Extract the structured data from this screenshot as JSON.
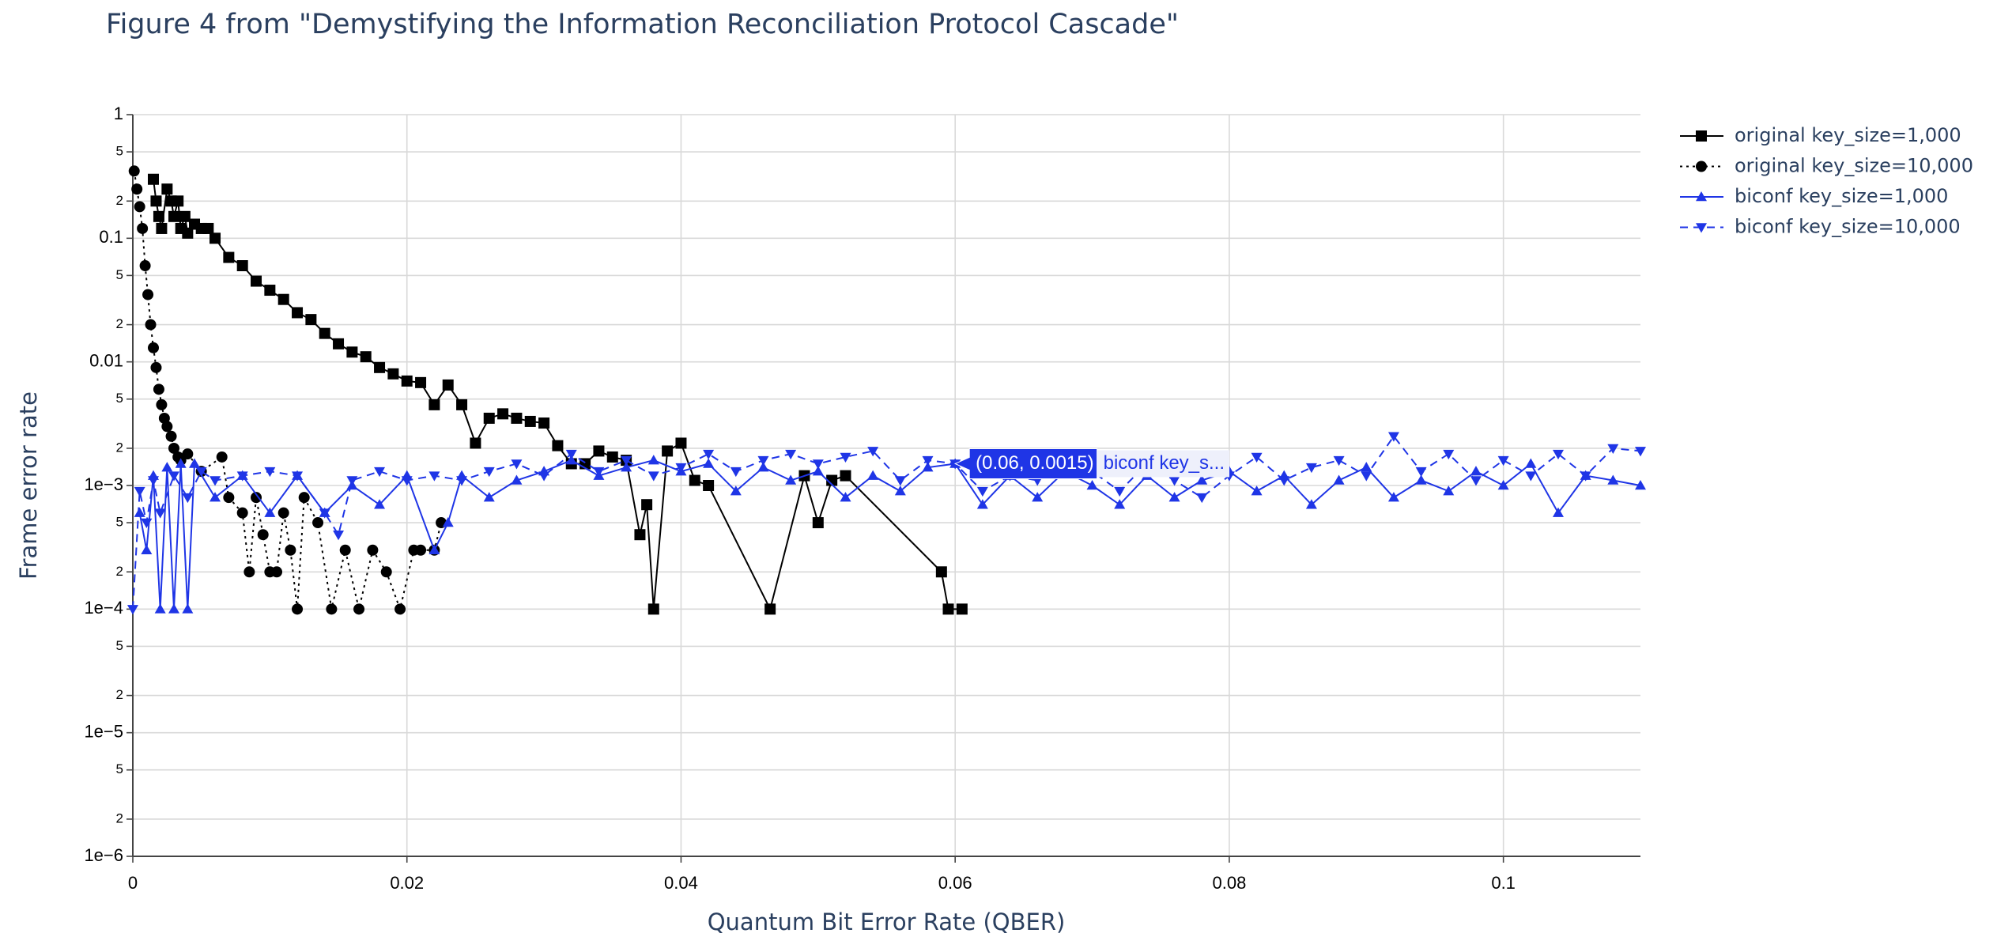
{
  "chart_data": {
    "type": "line",
    "title": "Figure 4 from \"Demystifying the Information Reconciliation Protocol Cascade\"",
    "x_label": "Quantum Bit Error Rate (QBER)",
    "y_label": "Frame error rate",
    "xlim": [
      0,
      0.11
    ],
    "xticks": [
      0,
      0.02,
      0.04,
      0.06,
      0.08,
      0.1
    ],
    "ylim": [
      1e-06,
      1
    ],
    "yscale": "log",
    "yticks": [
      1,
      {
        "value": 0.5,
        "label": "5"
      },
      {
        "value": 0.2,
        "label": "2"
      },
      0.1,
      {
        "value": 0.05,
        "label": "5"
      },
      {
        "value": 0.02,
        "label": "2"
      },
      0.01,
      {
        "value": 0.005,
        "label": "5"
      },
      {
        "value": 0.002,
        "label": "2"
      },
      {
        "value": 0.001,
        "label": "1e−3"
      },
      {
        "value": 0.0005,
        "label": "5"
      },
      {
        "value": 0.0002,
        "label": "2"
      },
      {
        "value": 0.0001,
        "label": "1e−4"
      },
      {
        "value": 5e-05,
        "label": "5"
      },
      {
        "value": 2e-05,
        "label": "2"
      },
      {
        "value": 1e-05,
        "label": "1e−5"
      },
      {
        "value": 5e-06,
        "label": "5"
      },
      {
        "value": 2e-06,
        "label": "2"
      },
      {
        "value": 1e-06,
        "label": "1e−6"
      }
    ],
    "grid": true,
    "legend": "top-right",
    "series": [
      {
        "name": "original key_size=1,000",
        "color": "#000000",
        "dash": "solid",
        "marker": "square",
        "x": [
          0.0015,
          0.0017,
          0.0019,
          0.0021,
          0.0025,
          0.0028,
          0.003,
          0.0033,
          0.0035,
          0.0038,
          0.004,
          0.0045,
          0.005,
          0.0055,
          0.006,
          0.007,
          0.008,
          0.009,
          0.01,
          0.011,
          0.012,
          0.013,
          0.014,
          0.015,
          0.016,
          0.017,
          0.018,
          0.019,
          0.02,
          0.021,
          0.022,
          0.023,
          0.024,
          0.025,
          0.026,
          0.027,
          0.028,
          0.029,
          0.03,
          0.031,
          0.032,
          0.033,
          0.034,
          0.035,
          0.036,
          0.037,
          0.0375,
          0.038,
          0.039,
          0.04,
          0.041,
          0.042,
          0.0465,
          0.049,
          0.05,
          0.051,
          0.052,
          0.059,
          0.0595,
          0.0605
        ],
        "values": [
          0.3,
          0.2,
          0.15,
          0.12,
          0.25,
          0.2,
          0.15,
          0.2,
          0.12,
          0.15,
          0.11,
          0.13,
          0.12,
          0.12,
          0.1,
          0.07,
          0.06,
          0.045,
          0.038,
          0.032,
          0.025,
          0.022,
          0.017,
          0.014,
          0.012,
          0.011,
          0.009,
          0.008,
          0.007,
          0.0068,
          0.0045,
          0.0065,
          0.0045,
          0.0022,
          0.0035,
          0.0038,
          0.0035,
          0.0033,
          0.0032,
          0.0021,
          0.0015,
          0.0015,
          0.0019,
          0.0017,
          0.0016,
          0.0004,
          0.0007,
          0.0001,
          0.0019,
          0.0022,
          0.0011,
          0.001,
          0.0001,
          0.0012,
          0.0005,
          0.0011,
          0.0012,
          0.0002,
          0.0001,
          0.0001
        ]
      },
      {
        "name": "original key_size=10,000",
        "color": "#000000",
        "dash": "dot",
        "marker": "circle",
        "x": [
          0.0001,
          0.0003,
          0.0005,
          0.0007,
          0.0009,
          0.0011,
          0.0013,
          0.0015,
          0.0017,
          0.0019,
          0.0021,
          0.0023,
          0.0025,
          0.0028,
          0.003,
          0.0033,
          0.0035,
          0.004,
          0.005,
          0.0065,
          0.007,
          0.008,
          0.0085,
          0.009,
          0.0095,
          0.01,
          0.0105,
          0.011,
          0.0115,
          0.012,
          0.0125,
          0.0135,
          0.0145,
          0.0155,
          0.0165,
          0.0175,
          0.0185,
          0.0195,
          0.0205,
          0.021,
          0.022,
          0.0225
        ],
        "values": [
          0.35,
          0.25,
          0.18,
          0.12,
          0.06,
          0.035,
          0.02,
          0.013,
          0.009,
          0.006,
          0.0045,
          0.0035,
          0.003,
          0.0025,
          0.002,
          0.0017,
          0.0016,
          0.0018,
          0.0013,
          0.0017,
          0.0008,
          0.0006,
          0.0002,
          0.0008,
          0.0004,
          0.0002,
          0.0002,
          0.0006,
          0.0003,
          0.0001,
          0.0008,
          0.0005,
          0.0001,
          0.0003,
          0.0001,
          0.0003,
          0.0002,
          0.0001,
          0.0003,
          0.0003,
          0.0003,
          0.0005
        ]
      },
      {
        "name": "biconf key_size=1,000",
        "color": "#1f35e6",
        "dash": "solid",
        "marker": "triangle-up",
        "x": [
          0.0005,
          0.001,
          0.0015,
          0.002,
          0.0025,
          0.003,
          0.0035,
          0.004,
          0.0045,
          0.006,
          0.008,
          0.01,
          0.012,
          0.014,
          0.016,
          0.018,
          0.02,
          0.022,
          0.023,
          0.024,
          0.026,
          0.028,
          0.03,
          0.032,
          0.034,
          0.036,
          0.038,
          0.04,
          0.042,
          0.044,
          0.046,
          0.048,
          0.05,
          0.052,
          0.054,
          0.056,
          0.058,
          0.06,
          0.062,
          0.064,
          0.066,
          0.068,
          0.07,
          0.072,
          0.074,
          0.076,
          0.078,
          0.08,
          0.082,
          0.084,
          0.086,
          0.088,
          0.09,
          0.092,
          0.094,
          0.096,
          0.098,
          0.1,
          0.102,
          0.104,
          0.106,
          0.108,
          0.11
        ],
        "values": [
          0.0006,
          0.0003,
          0.0012,
          0.0001,
          0.0014,
          0.0001,
          0.0015,
          0.0001,
          0.0015,
          0.0008,
          0.0012,
          0.0006,
          0.0012,
          0.0006,
          0.001,
          0.0007,
          0.0012,
          0.0003,
          0.0005,
          0.0012,
          0.0008,
          0.0011,
          0.0013,
          0.0016,
          0.0012,
          0.0014,
          0.0016,
          0.0013,
          0.0015,
          0.0009,
          0.0014,
          0.0011,
          0.0013,
          0.0008,
          0.0012,
          0.0009,
          0.0014,
          0.0015,
          0.0007,
          0.0012,
          0.0008,
          0.0013,
          0.001,
          0.0007,
          0.0012,
          0.0008,
          0.0011,
          0.0013,
          0.0009,
          0.0012,
          0.0007,
          0.0011,
          0.0014,
          0.0008,
          0.0011,
          0.0009,
          0.0013,
          0.001,
          0.0015,
          0.0006,
          0.0012,
          0.0011,
          0.001
        ]
      },
      {
        "name": "biconf key_size=10,000",
        "color": "#1f35e6",
        "dash": "dash",
        "marker": "triangle-down",
        "x": [
          0,
          0.0005,
          0.001,
          0.0015,
          0.002,
          0.003,
          0.004,
          0.005,
          0.006,
          0.008,
          0.01,
          0.012,
          0.014,
          0.015,
          0.016,
          0.018,
          0.02,
          0.022,
          0.024,
          0.026,
          0.028,
          0.03,
          0.032,
          0.034,
          0.036,
          0.038,
          0.04,
          0.042,
          0.044,
          0.046,
          0.048,
          0.05,
          0.052,
          0.054,
          0.056,
          0.058,
          0.06,
          0.062,
          0.064,
          0.066,
          0.068,
          0.07,
          0.072,
          0.074,
          0.076,
          0.078,
          0.08,
          0.082,
          0.084,
          0.086,
          0.088,
          0.09,
          0.092,
          0.094,
          0.096,
          0.098,
          0.1,
          0.102,
          0.104,
          0.106,
          0.108,
          0.11
        ],
        "values": [
          0.0001,
          0.0009,
          0.0005,
          0.0011,
          0.0006,
          0.0012,
          0.0008,
          0.0013,
          0.0011,
          0.0012,
          0.0013,
          0.0012,
          0.0006,
          0.0004,
          0.0011,
          0.0013,
          0.0011,
          0.0012,
          0.0011,
          0.0013,
          0.0015,
          0.0012,
          0.0018,
          0.0013,
          0.0016,
          0.0012,
          0.0014,
          0.0018,
          0.0013,
          0.0016,
          0.0018,
          0.0015,
          0.0017,
          0.0019,
          0.0011,
          0.0016,
          0.0015,
          0.0009,
          0.0012,
          0.0011,
          0.0017,
          0.0013,
          0.0009,
          0.0015,
          0.0011,
          0.0008,
          0.0012,
          0.0017,
          0.0011,
          0.0014,
          0.0016,
          0.0012,
          0.0025,
          0.0013,
          0.0018,
          0.0011,
          0.0016,
          0.0012,
          0.0018,
          0.0012,
          0.002,
          0.0019
        ]
      }
    ],
    "hover": {
      "x": 0.06,
      "y": 0.0015,
      "label": "(0.06, 0.0015)",
      "series": "biconf key_s..."
    }
  }
}
